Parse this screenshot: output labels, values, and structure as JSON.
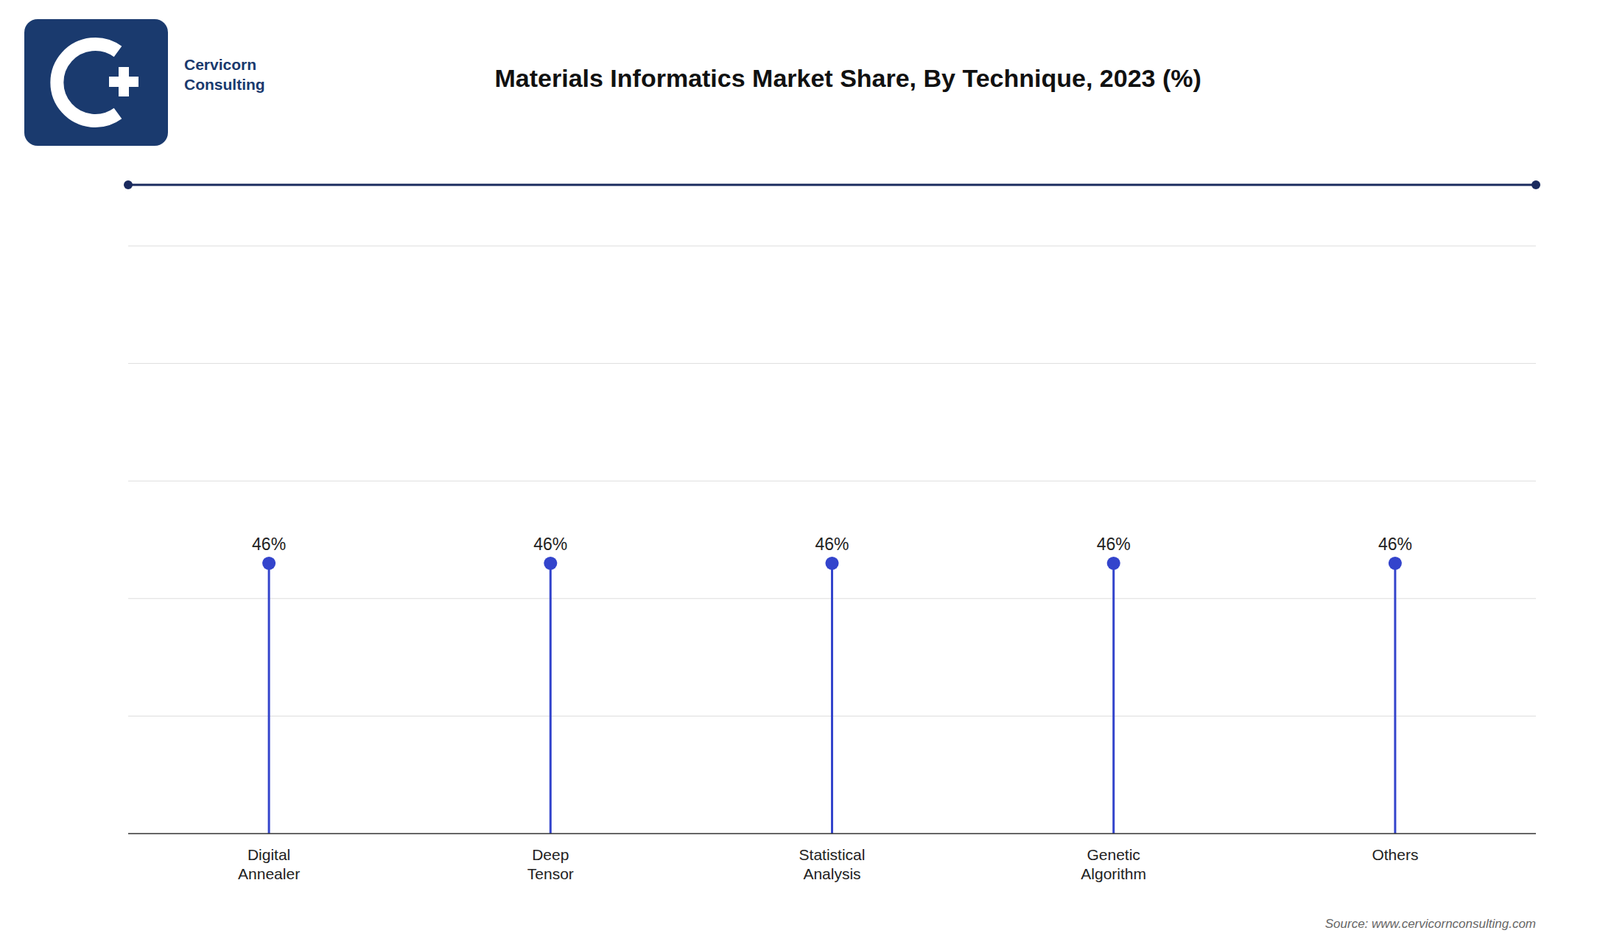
{
  "chart_data": {
    "type": "lollipop",
    "title": "Materials Informatics Market Share, By Technique, 2023 (%)",
    "categories": [
      "Digital\nAnnealer",
      "Deep\nTensor",
      "Statistical\nAnalysis",
      "Genetic\nAlgorithm",
      "Others"
    ],
    "values": [
      46,
      46,
      46,
      46,
      46
    ],
    "value_labels": [
      "46%",
      "46%",
      "46%",
      "46%",
      "46%"
    ],
    "color": "#3344cc",
    "ylim": [
      0,
      100
    ],
    "yticks": [
      20,
      40,
      60,
      80,
      100
    ],
    "grid": true,
    "tick_labels": "x",
    "data_labels": true,
    "annotations": [
      {
        "text": "Source: www.cervicornconsulting.com"
      },
      {
        "text": "Cervicorn\nConsulting",
        "color": "#1a3a6e"
      }
    ]
  }
}
